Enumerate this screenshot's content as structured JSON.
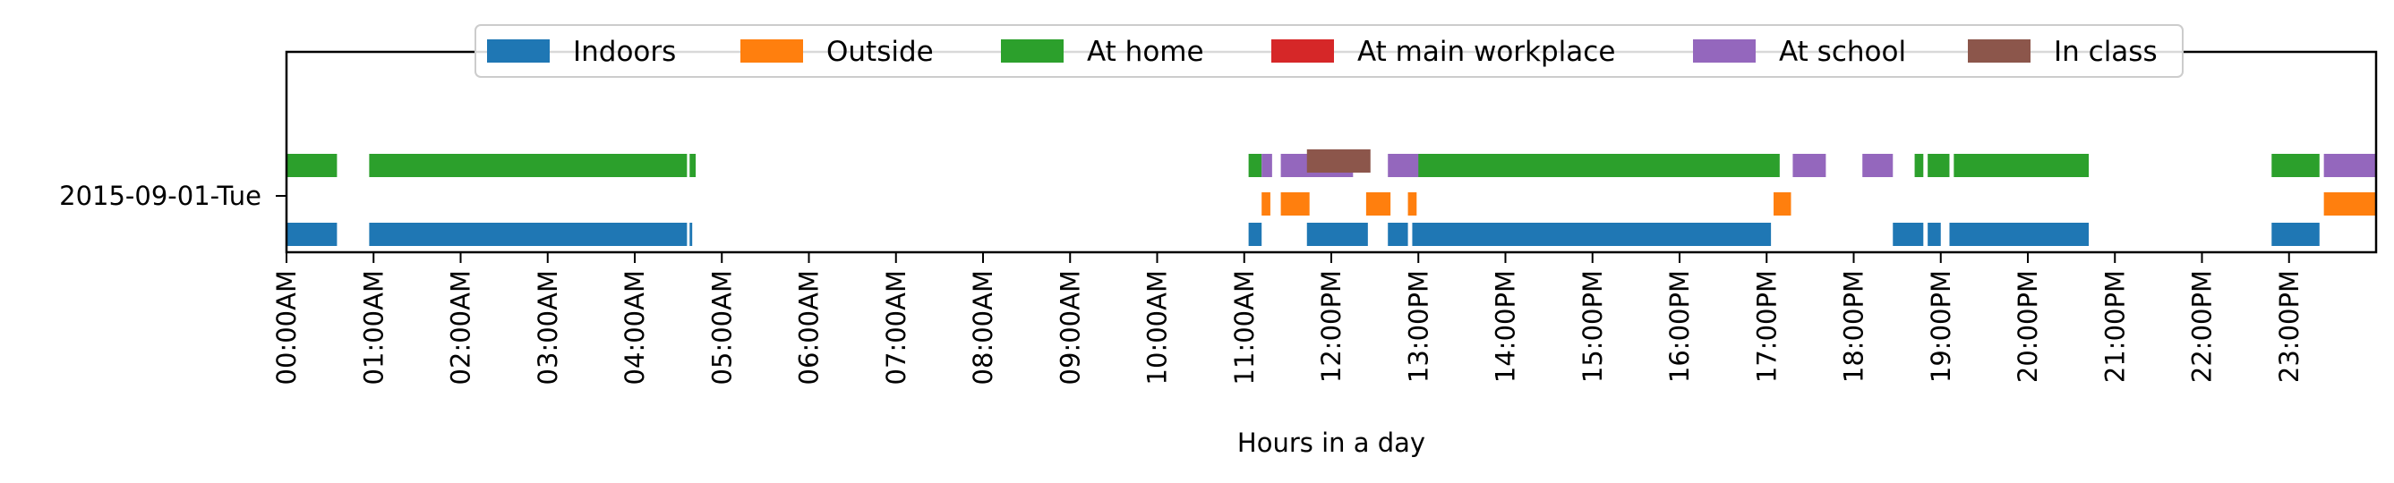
{
  "chart_data": {
    "type": "timeline",
    "xlabel": "Hours in a day",
    "ylabel": "",
    "x_unit": "hours",
    "xlim": [
      0,
      24
    ],
    "y_categories": [
      "2015-09-01-Tue"
    ],
    "x_ticks": [
      {
        "value": 0,
        "label": "00:00AM"
      },
      {
        "value": 1,
        "label": "01:00AM"
      },
      {
        "value": 2,
        "label": "02:00AM"
      },
      {
        "value": 3,
        "label": "03:00AM"
      },
      {
        "value": 4,
        "label": "04:00AM"
      },
      {
        "value": 5,
        "label": "05:00AM"
      },
      {
        "value": 6,
        "label": "06:00AM"
      },
      {
        "value": 7,
        "label": "07:00AM"
      },
      {
        "value": 8,
        "label": "08:00AM"
      },
      {
        "value": 9,
        "label": "09:00AM"
      },
      {
        "value": 10,
        "label": "10:00AM"
      },
      {
        "value": 11,
        "label": "11:00AM"
      },
      {
        "value": 12,
        "label": "12:00PM"
      },
      {
        "value": 13,
        "label": "13:00PM"
      },
      {
        "value": 14,
        "label": "14:00PM"
      },
      {
        "value": 15,
        "label": "15:00PM"
      },
      {
        "value": 16,
        "label": "16:00PM"
      },
      {
        "value": 17,
        "label": "17:00PM"
      },
      {
        "value": 18,
        "label": "18:00PM"
      },
      {
        "value": 19,
        "label": "19:00PM"
      },
      {
        "value": 20,
        "label": "20:00PM"
      },
      {
        "value": 21,
        "label": "21:00PM"
      },
      {
        "value": 22,
        "label": "22:00PM"
      },
      {
        "value": 23,
        "label": "23:00PM"
      }
    ],
    "legend_position": "top-center",
    "series": [
      {
        "name": "Indoors",
        "color": "#1f77b4",
        "lane": 0,
        "intervals": [
          [
            0.0,
            0.58
          ],
          [
            0.95,
            4.6
          ],
          [
            4.63,
            4.66
          ],
          [
            11.05,
            11.2
          ],
          [
            11.72,
            12.42
          ],
          [
            12.65,
            12.88
          ],
          [
            12.93,
            17.05
          ],
          [
            18.45,
            18.8
          ],
          [
            18.85,
            19.0
          ],
          [
            19.1,
            20.7
          ],
          [
            22.8,
            23.35
          ]
        ]
      },
      {
        "name": "Outside",
        "color": "#ff7f0e",
        "lane": 1,
        "intervals": [
          [
            11.2,
            11.3
          ],
          [
            11.42,
            11.75
          ],
          [
            12.4,
            12.68
          ],
          [
            12.88,
            12.98
          ],
          [
            17.08,
            17.28
          ],
          [
            23.4,
            24.0
          ]
        ]
      },
      {
        "name": "At home",
        "color": "#2ca02c",
        "lane": 2,
        "intervals": [
          [
            0.0,
            0.58
          ],
          [
            0.95,
            4.6
          ],
          [
            4.63,
            4.7
          ],
          [
            11.05,
            11.2
          ],
          [
            12.95,
            17.15
          ],
          [
            18.7,
            18.8
          ],
          [
            18.85,
            19.1
          ],
          [
            19.15,
            20.7
          ],
          [
            22.8,
            23.35
          ],
          [
            23.6,
            23.65
          ]
        ]
      },
      {
        "name": "At main workplace",
        "color": "#d62728",
        "lane": 3,
        "intervals": []
      },
      {
        "name": "At school",
        "color": "#9467bd",
        "lane": 3,
        "intervals": [
          [
            11.2,
            11.32
          ],
          [
            11.42,
            12.25
          ],
          [
            12.65,
            13.0
          ],
          [
            17.3,
            17.68
          ],
          [
            18.1,
            18.45
          ],
          [
            23.4,
            24.0
          ]
        ]
      },
      {
        "name": "In class",
        "color": "#8c564b",
        "lane": 4,
        "intervals": [
          [
            11.72,
            12.45
          ]
        ]
      }
    ]
  }
}
